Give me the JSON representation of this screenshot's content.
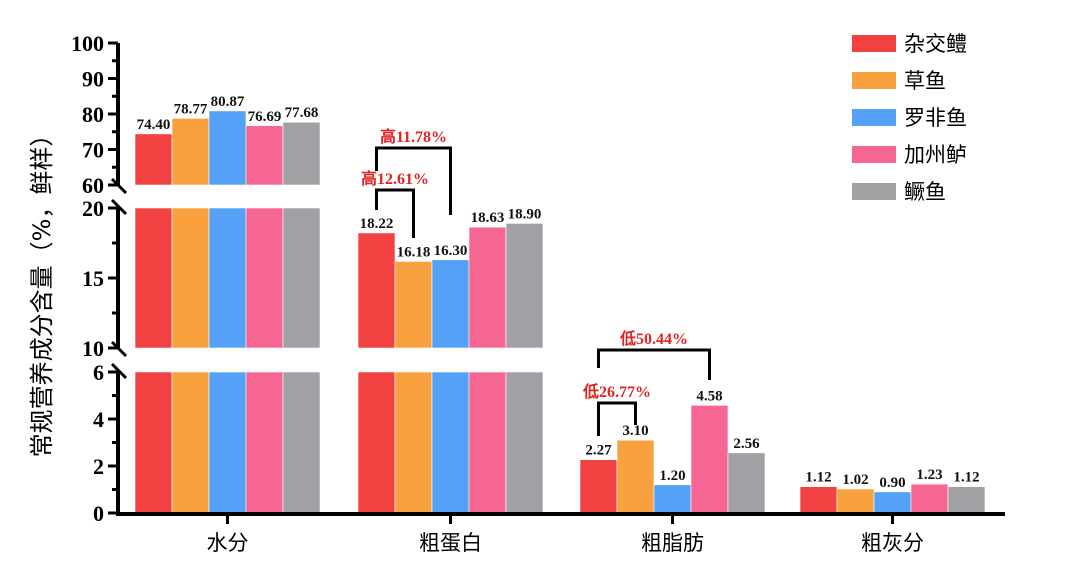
{
  "chart_data": {
    "type": "bar",
    "title": "",
    "xlabel": "",
    "ylabel": "常规营养成分含量（%，鲜样）",
    "categories": [
      "水分",
      "粗蛋白",
      "粗脂肪",
      "粗灰分"
    ],
    "series": [
      {
        "name": "杂交鳢",
        "color": "#f24141",
        "values": [
          74.4,
          18.22,
          2.27,
          1.12
        ],
        "labels": [
          "74.40",
          "18.22",
          "2.27",
          "1.12"
        ]
      },
      {
        "name": "草鱼",
        "color": "#f9a13f",
        "values": [
          78.77,
          16.18,
          3.1,
          1.02
        ],
        "labels": [
          "78.77",
          "16.18",
          "3.10",
          "1.02"
        ]
      },
      {
        "name": "罗非鱼",
        "color": "#55a1f7",
        "values": [
          80.87,
          16.3,
          1.2,
          0.9
        ],
        "labels": [
          "80.87",
          "16.30",
          "1.20",
          "0.90"
        ]
      },
      {
        "name": "加州鲈",
        "color": "#f56792",
        "values": [
          76.69,
          18.63,
          4.58,
          1.23
        ],
        "labels": [
          "76.69",
          "18.63",
          "4.58",
          "1.23"
        ]
      },
      {
        "name": "鳜鱼",
        "color": "#a1a0a5",
        "values": [
          77.68,
          18.9,
          2.56,
          1.12
        ],
        "labels": [
          "77.68",
          "18.90",
          "2.56",
          "1.12"
        ]
      }
    ],
    "y_axis_segments": [
      {
        "range": [
          0,
          6
        ],
        "ticks": [
          "0",
          "2",
          "4",
          "6"
        ]
      },
      {
        "range": [
          10,
          20
        ],
        "ticks": [
          "10",
          "15",
          "20"
        ]
      },
      {
        "range": [
          60,
          100
        ],
        "ticks": [
          "60",
          "70",
          "80",
          "90",
          "100"
        ]
      }
    ],
    "legend_position": "top-right",
    "annotations": [
      {
        "text": "高11.78%",
        "category": "粗蛋白",
        "from_series": "杂交鳢",
        "to_series": "罗非鱼"
      },
      {
        "text": "高12.61%",
        "category": "粗蛋白",
        "from_series": "杂交鳢",
        "to_series": "草鱼"
      },
      {
        "text": "低50.44%",
        "category": "粗脂肪",
        "from_series": "杂交鳢",
        "to_series": "加州鲈"
      },
      {
        "text": "低26.77%",
        "category": "粗脂肪",
        "from_series": "杂交鳢",
        "to_series": "草鱼"
      }
    ]
  }
}
